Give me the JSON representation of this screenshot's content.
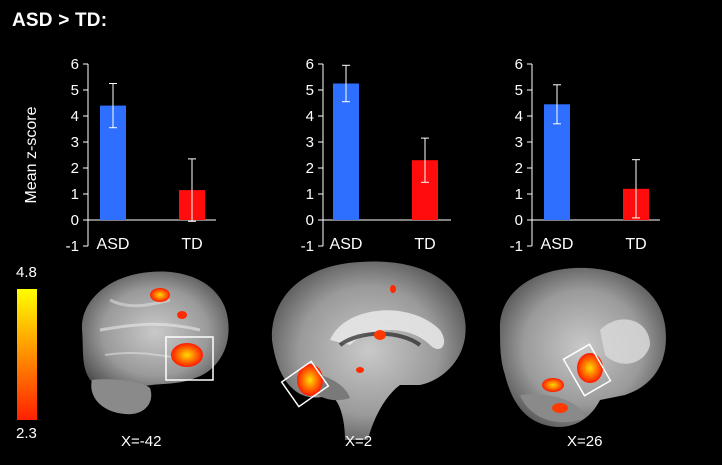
{
  "figure_title": "ASD > TD:",
  "chart_data": [
    {
      "type": "bar",
      "ylabel": "Mean z-score",
      "categories": [
        "ASD",
        "TD"
      ],
      "values": [
        4.4,
        1.15
      ],
      "error": [
        0.85,
        1.2
      ],
      "colors": [
        "#2f6fff",
        "#ff0d0d"
      ],
      "ylim": [
        -1,
        6
      ],
      "yticks": [
        -1,
        0,
        1,
        2,
        3,
        4,
        5,
        6
      ]
    },
    {
      "type": "bar",
      "ylabel": "",
      "categories": [
        "ASD",
        "TD"
      ],
      "values": [
        5.25,
        2.3
      ],
      "error": [
        0.7,
        0.85
      ],
      "colors": [
        "#2f6fff",
        "#ff0d0d"
      ],
      "ylim": [
        -1,
        6
      ],
      "yticks": [
        -1,
        0,
        1,
        2,
        3,
        4,
        5,
        6
      ]
    },
    {
      "type": "bar",
      "ylabel": "",
      "categories": [
        "ASD",
        "TD"
      ],
      "values": [
        4.45,
        1.2
      ],
      "error": [
        0.75,
        1.12
      ],
      "colors": [
        "#2f6fff",
        "#ff0d0d"
      ],
      "ylim": [
        -1,
        6
      ],
      "yticks": [
        -1,
        0,
        1,
        2,
        3,
        4,
        5,
        6
      ]
    }
  ],
  "colorbar": {
    "max_label": "4.8",
    "min_label": "2.3",
    "colors": [
      "#ffff00",
      "#ff2000"
    ]
  },
  "brain_slices": [
    {
      "label": "X=-42"
    },
    {
      "label": "X=2"
    },
    {
      "label": "X=26"
    }
  ]
}
